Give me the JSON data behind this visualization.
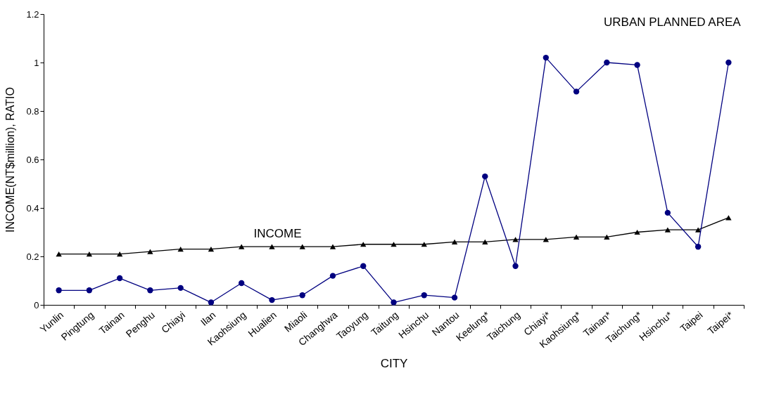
{
  "chart_data": {
    "type": "line",
    "xlabel": "CITY",
    "ylabel": "INCOME(NT$million), RATIO",
    "categories": [
      "Yunlin",
      "Pingtung",
      "Tainan",
      "Penghu",
      "Chiayi",
      "Ilan",
      "Kaohsiung",
      "Hualien",
      "Miaoli",
      "Changhwa",
      "Taoyung",
      "Taitung",
      "Hsinchu",
      "Nantou",
      "Keelung*",
      "Taichung",
      "Chiayi*",
      "Kaohsiung*",
      "Tainan*",
      "Taichung*",
      "Hsinchu*",
      "Taipei",
      "Taipei*"
    ],
    "series": [
      {
        "name": "INCOME",
        "color": "#000000",
        "marker": "triangle",
        "values": [
          0.21,
          0.21,
          0.21,
          0.22,
          0.23,
          0.23,
          0.24,
          0.24,
          0.24,
          0.24,
          0.25,
          0.25,
          0.25,
          0.26,
          0.26,
          0.27,
          0.27,
          0.28,
          0.28,
          0.3,
          0.31,
          0.31,
          0.36
        ]
      },
      {
        "name": "URBAN PLANNED AREA",
        "color": "#000080",
        "marker": "circle",
        "values": [
          0.06,
          0.06,
          0.11,
          0.06,
          0.07,
          0.01,
          0.09,
          0.02,
          0.04,
          0.12,
          0.16,
          0.01,
          0.04,
          0.03,
          0.53,
          0.16,
          1.02,
          0.88,
          1.0,
          0.99,
          0.38,
          0.24,
          1.0
        ]
      }
    ],
    "ylim": [
      0,
      1.2
    ],
    "yticks": [
      0,
      0.2,
      0.4,
      0.6,
      0.8,
      1,
      1.2
    ],
    "grid": false,
    "legend": false,
    "line_style": "solid"
  }
}
